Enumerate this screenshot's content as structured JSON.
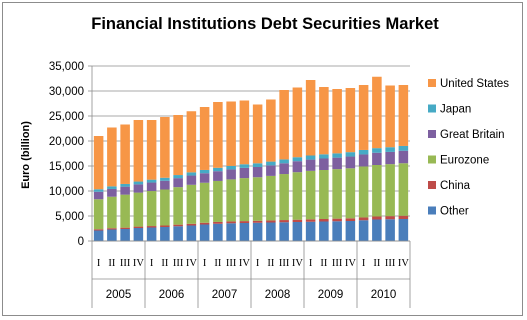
{
  "chart_data": {
    "type": "bar",
    "stacked": true,
    "title": "Financial Institutions Debt Securities Market",
    "ylabel": "Euro (billion)",
    "xlabel": "",
    "ylim": [
      0,
      35000
    ],
    "yticks": [
      "0",
      "5,000",
      "10,000",
      "15,000",
      "20,000",
      "25,000",
      "30,000",
      "35,000"
    ],
    "ytick_values": [
      0,
      5000,
      10000,
      15000,
      20000,
      25000,
      30000,
      35000
    ],
    "grid": true,
    "legend_position": "right",
    "quarters": [
      "I",
      "II",
      "III",
      "IV",
      "I",
      "II",
      "III",
      "IV",
      "I",
      "II",
      "III",
      "IV",
      "I",
      "II",
      "III",
      "IV",
      "I",
      "II",
      "III",
      "IV",
      "I",
      "II",
      "III",
      "IV"
    ],
    "years": [
      "2005",
      "2006",
      "2007",
      "2008",
      "2009",
      "2010"
    ],
    "series": [
      {
        "name": "Other",
        "color": "#4a7ebb",
        "values": [
          2100,
          2300,
          2400,
          2600,
          2700,
          2800,
          2950,
          3100,
          3300,
          3450,
          3550,
          3600,
          3650,
          3700,
          3750,
          3800,
          3850,
          3900,
          3950,
          4000,
          4150,
          4300,
          4350,
          4400
        ]
      },
      {
        "name": "China",
        "color": "#be4b48",
        "values": [
          250,
          260,
          270,
          280,
          290,
          300,
          320,
          340,
          350,
          360,
          370,
          380,
          400,
          420,
          440,
          460,
          480,
          500,
          520,
          540,
          560,
          600,
          620,
          650
        ]
      },
      {
        "name": "Eurozone",
        "color": "#98b954",
        "values": [
          6000,
          6300,
          6600,
          6800,
          7000,
          7200,
          7500,
          7800,
          8000,
          8200,
          8400,
          8600,
          8700,
          8900,
          9200,
          9500,
          9700,
          9800,
          9900,
          10000,
          10200,
          10300,
          10400,
          10500
        ]
      },
      {
        "name": "Great Britain",
        "color": "#7d60a0",
        "values": [
          1500,
          1550,
          1600,
          1650,
          1700,
          1750,
          1800,
          1850,
          1900,
          1950,
          2000,
          2050,
          2050,
          2100,
          2150,
          2200,
          2250,
          2300,
          2300,
          2350,
          2400,
          2450,
          2450,
          2500
        ]
      },
      {
        "name": "Japan",
        "color": "#46aac5",
        "values": [
          500,
          520,
          540,
          560,
          580,
          600,
          620,
          640,
          660,
          680,
          700,
          720,
          740,
          760,
          780,
          800,
          820,
          840,
          860,
          880,
          900,
          920,
          940,
          960
        ]
      },
      {
        "name": "United States",
        "color": "#f79646",
        "values": [
          10650,
          11770,
          11890,
          12310,
          11930,
          12150,
          12010,
          12220,
          12590,
          13160,
          12880,
          12750,
          11760,
          12420,
          13880,
          13940,
          15100,
          13460,
          12870,
          12830,
          12990,
          14280,
          12340,
          12190
        ]
      }
    ]
  }
}
